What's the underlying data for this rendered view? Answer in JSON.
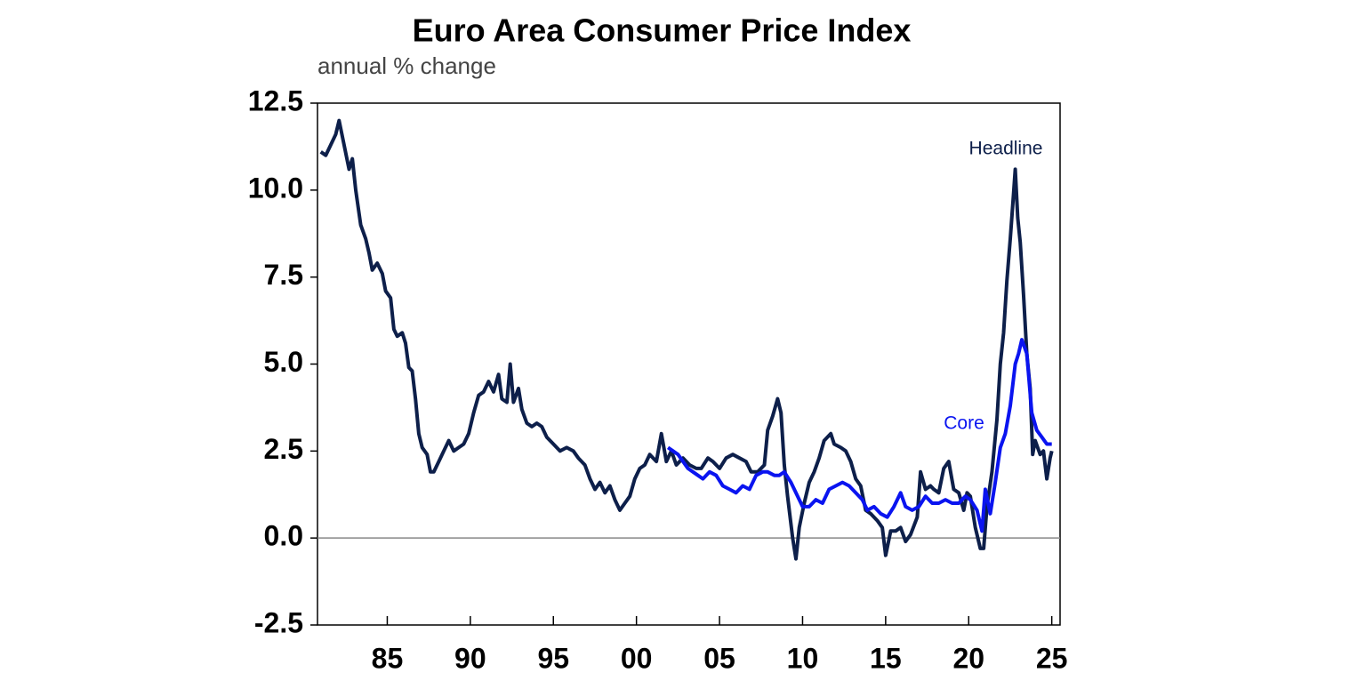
{
  "chart_data": {
    "type": "line",
    "title": "Euro Area Consumer Price Index",
    "subtitle": "annual % change",
    "xlim": [
      1980.8,
      2025.5
    ],
    "ylim": [
      -2.5,
      12.5
    ],
    "xticks": [
      {
        "value": 1985,
        "label": "85"
      },
      {
        "value": 1990,
        "label": "90"
      },
      {
        "value": 1995,
        "label": "95"
      },
      {
        "value": 2000,
        "label": "00"
      },
      {
        "value": 2005,
        "label": "05"
      },
      {
        "value": 2010,
        "label": "10"
      },
      {
        "value": 2015,
        "label": "15"
      },
      {
        "value": 2020,
        "label": "20"
      },
      {
        "value": 2025,
        "label": "25"
      }
    ],
    "yticks": [
      12.5,
      {
        "value": 10,
        "label": "10.0"
      },
      7.5,
      {
        "value": 5,
        "label": "5.0"
      },
      2.5,
      {
        "value": 0,
        "label": "0.0"
      },
      -2.5
    ],
    "zero_line": true,
    "series": [
      {
        "name": "Headline",
        "color": "#0d1f4a",
        "x": [
          1981.0,
          1981.3,
          1981.6,
          1981.9,
          1982.1,
          1982.4,
          1982.7,
          1982.9,
          1983.1,
          1983.4,
          1983.7,
          1983.9,
          1984.1,
          1984.4,
          1984.7,
          1984.9,
          1985.2,
          1985.4,
          1985.6,
          1985.9,
          1986.1,
          1986.3,
          1986.5,
          1986.7,
          1986.9,
          1987.1,
          1987.4,
          1987.6,
          1987.8,
          1988.1,
          1988.4,
          1988.7,
          1989.0,
          1989.3,
          1989.6,
          1989.9,
          1990.2,
          1990.5,
          1990.8,
          1991.1,
          1991.4,
          1991.7,
          1991.9,
          1992.2,
          1992.4,
          1992.6,
          1992.9,
          1993.1,
          1993.4,
          1993.7,
          1994.0,
          1994.3,
          1994.6,
          1995.0,
          1995.4,
          1995.8,
          1996.2,
          1996.5,
          1996.9,
          1997.2,
          1997.5,
          1997.8,
          1998.1,
          1998.4,
          1998.7,
          1999.0,
          1999.3,
          1999.6,
          1999.9,
          2000.2,
          2000.5,
          2000.8,
          2001.2,
          2001.5,
          2001.8,
          2002.1,
          2002.4,
          2002.8,
          2003.2,
          2003.6,
          2003.9,
          2004.3,
          2004.6,
          2005.0,
          2005.4,
          2005.8,
          2006.2,
          2006.6,
          2006.9,
          2007.3,
          2007.7,
          2007.9,
          2008.2,
          2008.5,
          2008.7,
          2008.9,
          2009.1,
          2009.4,
          2009.6,
          2009.8,
          2010.1,
          2010.4,
          2010.7,
          2011.0,
          2011.3,
          2011.7,
          2011.9,
          2012.3,
          2012.6,
          2012.9,
          2013.2,
          2013.5,
          2013.8,
          2014.1,
          2014.5,
          2014.8,
          2015.0,
          2015.3,
          2015.6,
          2015.9,
          2016.2,
          2016.5,
          2016.9,
          2017.1,
          2017.4,
          2017.7,
          2017.9,
          2018.2,
          2018.5,
          2018.8,
          2019.1,
          2019.4,
          2019.7,
          2019.9,
          2020.1,
          2020.4,
          2020.7,
          2020.9,
          2021.1,
          2021.4,
          2021.7,
          2021.9,
          2022.1,
          2022.3,
          2022.5,
          2022.7,
          2022.8,
          2022.95,
          2023.1,
          2023.3,
          2023.5,
          2023.7,
          2023.85,
          2024.0,
          2024.3,
          2024.5,
          2024.7,
          2024.9,
          2025.0
        ],
        "values": [
          11.1,
          11.0,
          11.3,
          11.6,
          12.0,
          11.3,
          10.6,
          10.9,
          10.0,
          9.0,
          8.6,
          8.2,
          7.7,
          7.9,
          7.6,
          7.1,
          6.9,
          6.0,
          5.8,
          5.9,
          5.6,
          4.9,
          4.8,
          4.0,
          3.0,
          2.6,
          2.4,
          1.9,
          1.9,
          2.2,
          2.5,
          2.8,
          2.5,
          2.6,
          2.7,
          3.0,
          3.6,
          4.1,
          4.2,
          4.5,
          4.2,
          4.7,
          4.0,
          3.9,
          5.0,
          3.9,
          4.3,
          3.7,
          3.3,
          3.2,
          3.3,
          3.2,
          2.9,
          2.7,
          2.5,
          2.6,
          2.5,
          2.3,
          2.1,
          1.7,
          1.4,
          1.6,
          1.3,
          1.5,
          1.1,
          0.8,
          1.0,
          1.2,
          1.7,
          2.0,
          2.1,
          2.4,
          2.2,
          3.0,
          2.2,
          2.5,
          2.1,
          2.3,
          2.1,
          2.0,
          2.0,
          2.3,
          2.2,
          2.0,
          2.3,
          2.4,
          2.3,
          2.2,
          1.9,
          1.9,
          2.1,
          3.1,
          3.5,
          4.0,
          3.6,
          2.1,
          1.2,
          0.0,
          -0.6,
          0.3,
          1.0,
          1.6,
          1.9,
          2.3,
          2.8,
          3.0,
          2.7,
          2.6,
          2.5,
          2.2,
          1.7,
          1.5,
          0.8,
          0.7,
          0.5,
          0.3,
          -0.5,
          0.2,
          0.2,
          0.3,
          -0.1,
          0.1,
          0.6,
          1.9,
          1.4,
          1.5,
          1.4,
          1.3,
          2.0,
          2.2,
          1.4,
          1.3,
          0.8,
          1.3,
          1.2,
          0.3,
          -0.3,
          -0.3,
          0.9,
          1.9,
          3.4,
          5.0,
          5.9,
          7.4,
          8.6,
          9.9,
          10.6,
          9.2,
          8.5,
          7.0,
          5.3,
          4.3,
          2.4,
          2.8,
          2.4,
          2.5,
          1.7,
          2.3,
          2.5
        ]
      },
      {
        "name": "Core",
        "color": "#0a14f0",
        "x": [
          2001.9,
          2002.2,
          2002.5,
          2002.8,
          2003.1,
          2003.4,
          2003.7,
          2004.0,
          2004.4,
          2004.8,
          2005.2,
          2005.6,
          2006.0,
          2006.4,
          2006.8,
          2007.2,
          2007.6,
          2007.9,
          2008.3,
          2008.6,
          2008.9,
          2009.3,
          2009.7,
          2010.0,
          2010.4,
          2010.8,
          2011.2,
          2011.6,
          2012.0,
          2012.4,
          2012.8,
          2013.2,
          2013.6,
          2013.9,
          2014.3,
          2014.7,
          2015.1,
          2015.5,
          2015.9,
          2016.2,
          2016.6,
          2017.0,
          2017.4,
          2017.8,
          2018.2,
          2018.6,
          2019.0,
          2019.4,
          2019.8,
          2020.1,
          2020.5,
          2020.8,
          2021.0,
          2021.3,
          2021.6,
          2021.9,
          2022.2,
          2022.5,
          2022.8,
          2023.0,
          2023.2,
          2023.5,
          2023.8,
          2024.1,
          2024.4,
          2024.7,
          2025.0
        ],
        "values": [
          2.6,
          2.5,
          2.4,
          2.2,
          2.0,
          1.9,
          1.8,
          1.7,
          1.9,
          1.8,
          1.5,
          1.4,
          1.3,
          1.5,
          1.4,
          1.8,
          1.9,
          1.9,
          1.8,
          1.8,
          1.9,
          1.6,
          1.2,
          0.9,
          0.9,
          1.1,
          1.0,
          1.4,
          1.5,
          1.6,
          1.5,
          1.3,
          1.1,
          0.8,
          0.9,
          0.7,
          0.6,
          0.9,
          1.3,
          0.9,
          0.8,
          0.9,
          1.2,
          1.0,
          1.0,
          1.1,
          1.0,
          1.0,
          1.2,
          1.1,
          0.8,
          0.2,
          1.4,
          0.7,
          1.6,
          2.6,
          3.0,
          3.8,
          5.0,
          5.3,
          5.7,
          5.3,
          3.6,
          3.1,
          2.9,
          2.7,
          2.7
        ]
      }
    ]
  }
}
